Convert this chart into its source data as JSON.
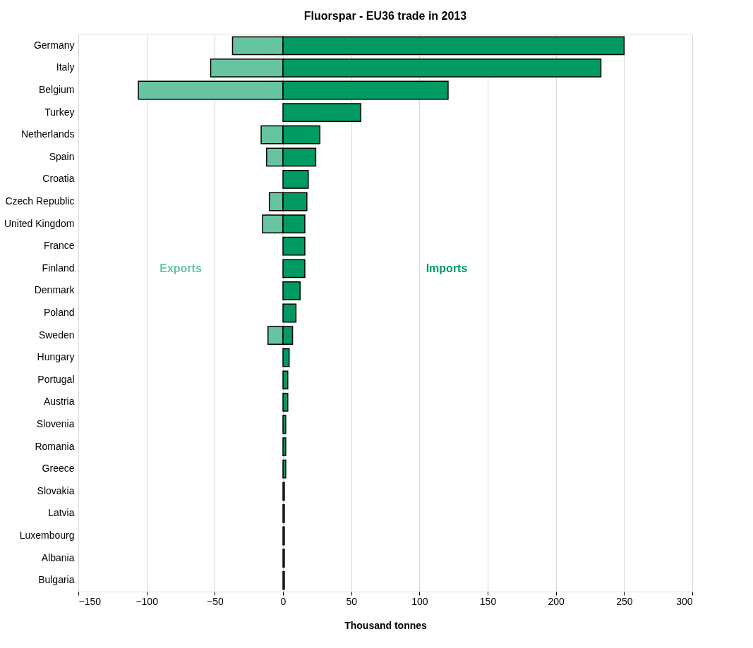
{
  "chart_data": {
    "type": "bar",
    "orientation": "horizontal",
    "title": "Fluorspar - EU36 trade in 2013",
    "xlabel": "Thousand tonnes",
    "categories": [
      "Germany",
      "Italy",
      "Belgium",
      "Turkey",
      "Netherlands",
      "Spain",
      "Croatia",
      "Czech Republic",
      "United Kingdom",
      "France",
      "Finland",
      "Denmark",
      "Poland",
      "Sweden",
      "Hungary",
      "Portugal",
      "Austria",
      "Slovenia",
      "Romania",
      "Greece",
      "Slovakia",
      "Latvia",
      "Luxembourg",
      "Albania",
      "Bulgaria"
    ],
    "series": [
      {
        "name": "Exports",
        "color": "#66c4a0",
        "values": [
          -37,
          -53,
          -106,
          null,
          -16,
          -12,
          null,
          -10,
          -15,
          null,
          null,
          null,
          null,
          -11,
          null,
          null,
          null,
          null,
          null,
          null,
          null,
          null,
          null,
          null,
          null
        ]
      },
      {
        "name": "Imports",
        "color": "#009a62",
        "values": [
          250,
          233,
          121,
          57,
          27,
          24,
          18.5,
          17.5,
          16,
          16,
          16,
          12.5,
          9.5,
          7,
          4.5,
          3.5,
          3.5,
          2,
          2,
          2,
          1,
          1,
          1,
          1,
          1
        ]
      }
    ],
    "xlim": [
      -150,
      300
    ],
    "xticks": [
      -150,
      -100,
      -50,
      0,
      50,
      100,
      150,
      200,
      250,
      300
    ],
    "grid": "x"
  }
}
